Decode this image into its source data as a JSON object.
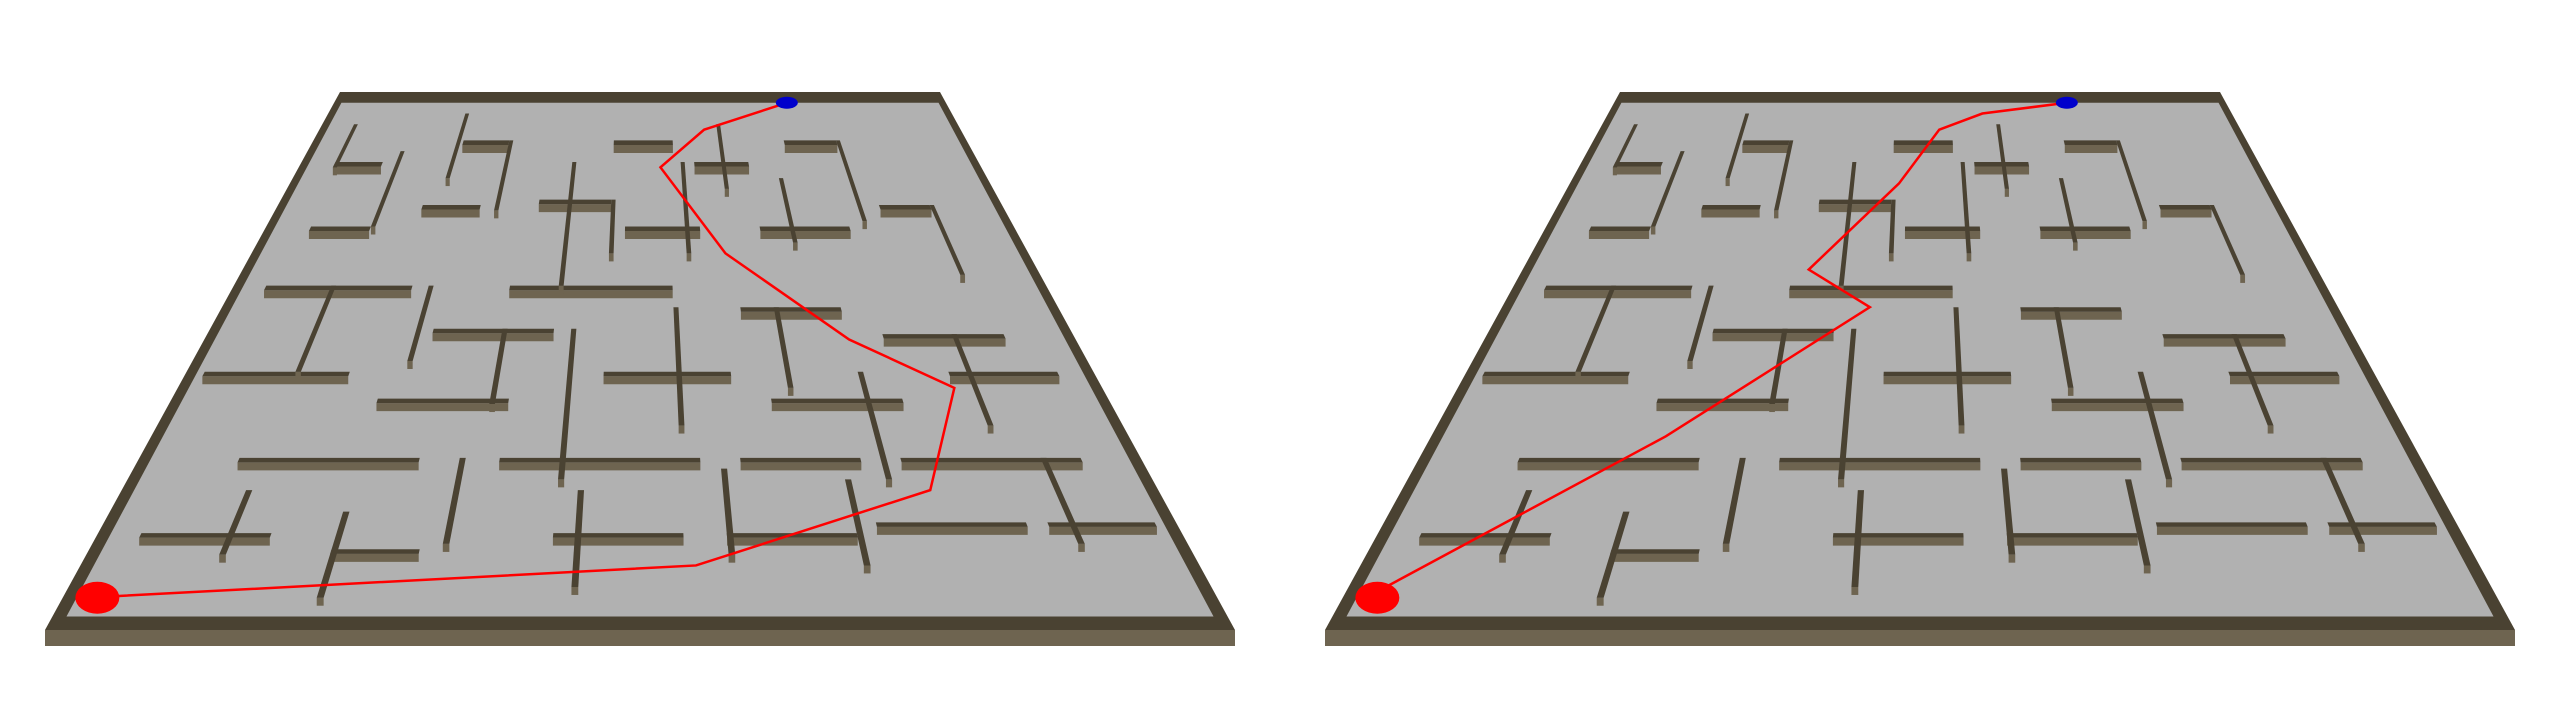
{
  "scene": {
    "background": "#ffffff",
    "floor_color": "#b1b1b1",
    "wall_top_color": "#4a4232",
    "wall_face_color": "#6e6450",
    "path_color": "#ff0000",
    "start_marker_color": "#ff0000",
    "goal_marker_color": "#0000cc"
  },
  "panels": [
    {
      "id": "left",
      "markers": [
        "start-marker",
        "goal-marker"
      ]
    },
    {
      "id": "right",
      "markers": [
        "start-marker",
        "goal-marker"
      ]
    }
  ]
}
